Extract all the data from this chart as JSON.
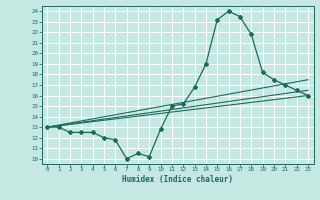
{
  "title": "",
  "xlabel": "Humidex (Indice chaleur)",
  "bg_color": "#c5e8e2",
  "grid_color": "#ffffff",
  "line_color": "#1a6b5a",
  "xlim": [
    -0.5,
    23.5
  ],
  "ylim": [
    9.5,
    24.5
  ],
  "xticks": [
    0,
    1,
    2,
    3,
    4,
    5,
    6,
    7,
    8,
    9,
    10,
    11,
    12,
    13,
    14,
    15,
    16,
    17,
    18,
    19,
    20,
    21,
    22,
    23
  ],
  "yticks": [
    10,
    11,
    12,
    13,
    14,
    15,
    16,
    17,
    18,
    19,
    20,
    21,
    22,
    23,
    24
  ],
  "series1_x": [
    0,
    1,
    2,
    3,
    4,
    5,
    6,
    7,
    8,
    9,
    10,
    11,
    12,
    13,
    14,
    15,
    16,
    17,
    18,
    19,
    20,
    21,
    22,
    23
  ],
  "series1_y": [
    13.0,
    13.0,
    12.5,
    12.5,
    12.5,
    12.0,
    11.8,
    10.0,
    10.5,
    10.2,
    12.8,
    15.0,
    15.2,
    16.8,
    19.0,
    23.2,
    24.0,
    23.5,
    21.8,
    18.2,
    17.5,
    17.0,
    16.5,
    16.0
  ],
  "series2_x": [
    0,
    23
  ],
  "series2_y": [
    13.0,
    17.5
  ],
  "series3_x": [
    0,
    23
  ],
  "series3_y": [
    13.0,
    16.0
  ],
  "series4_x": [
    0,
    23
  ],
  "series4_y": [
    13.0,
    16.5
  ]
}
